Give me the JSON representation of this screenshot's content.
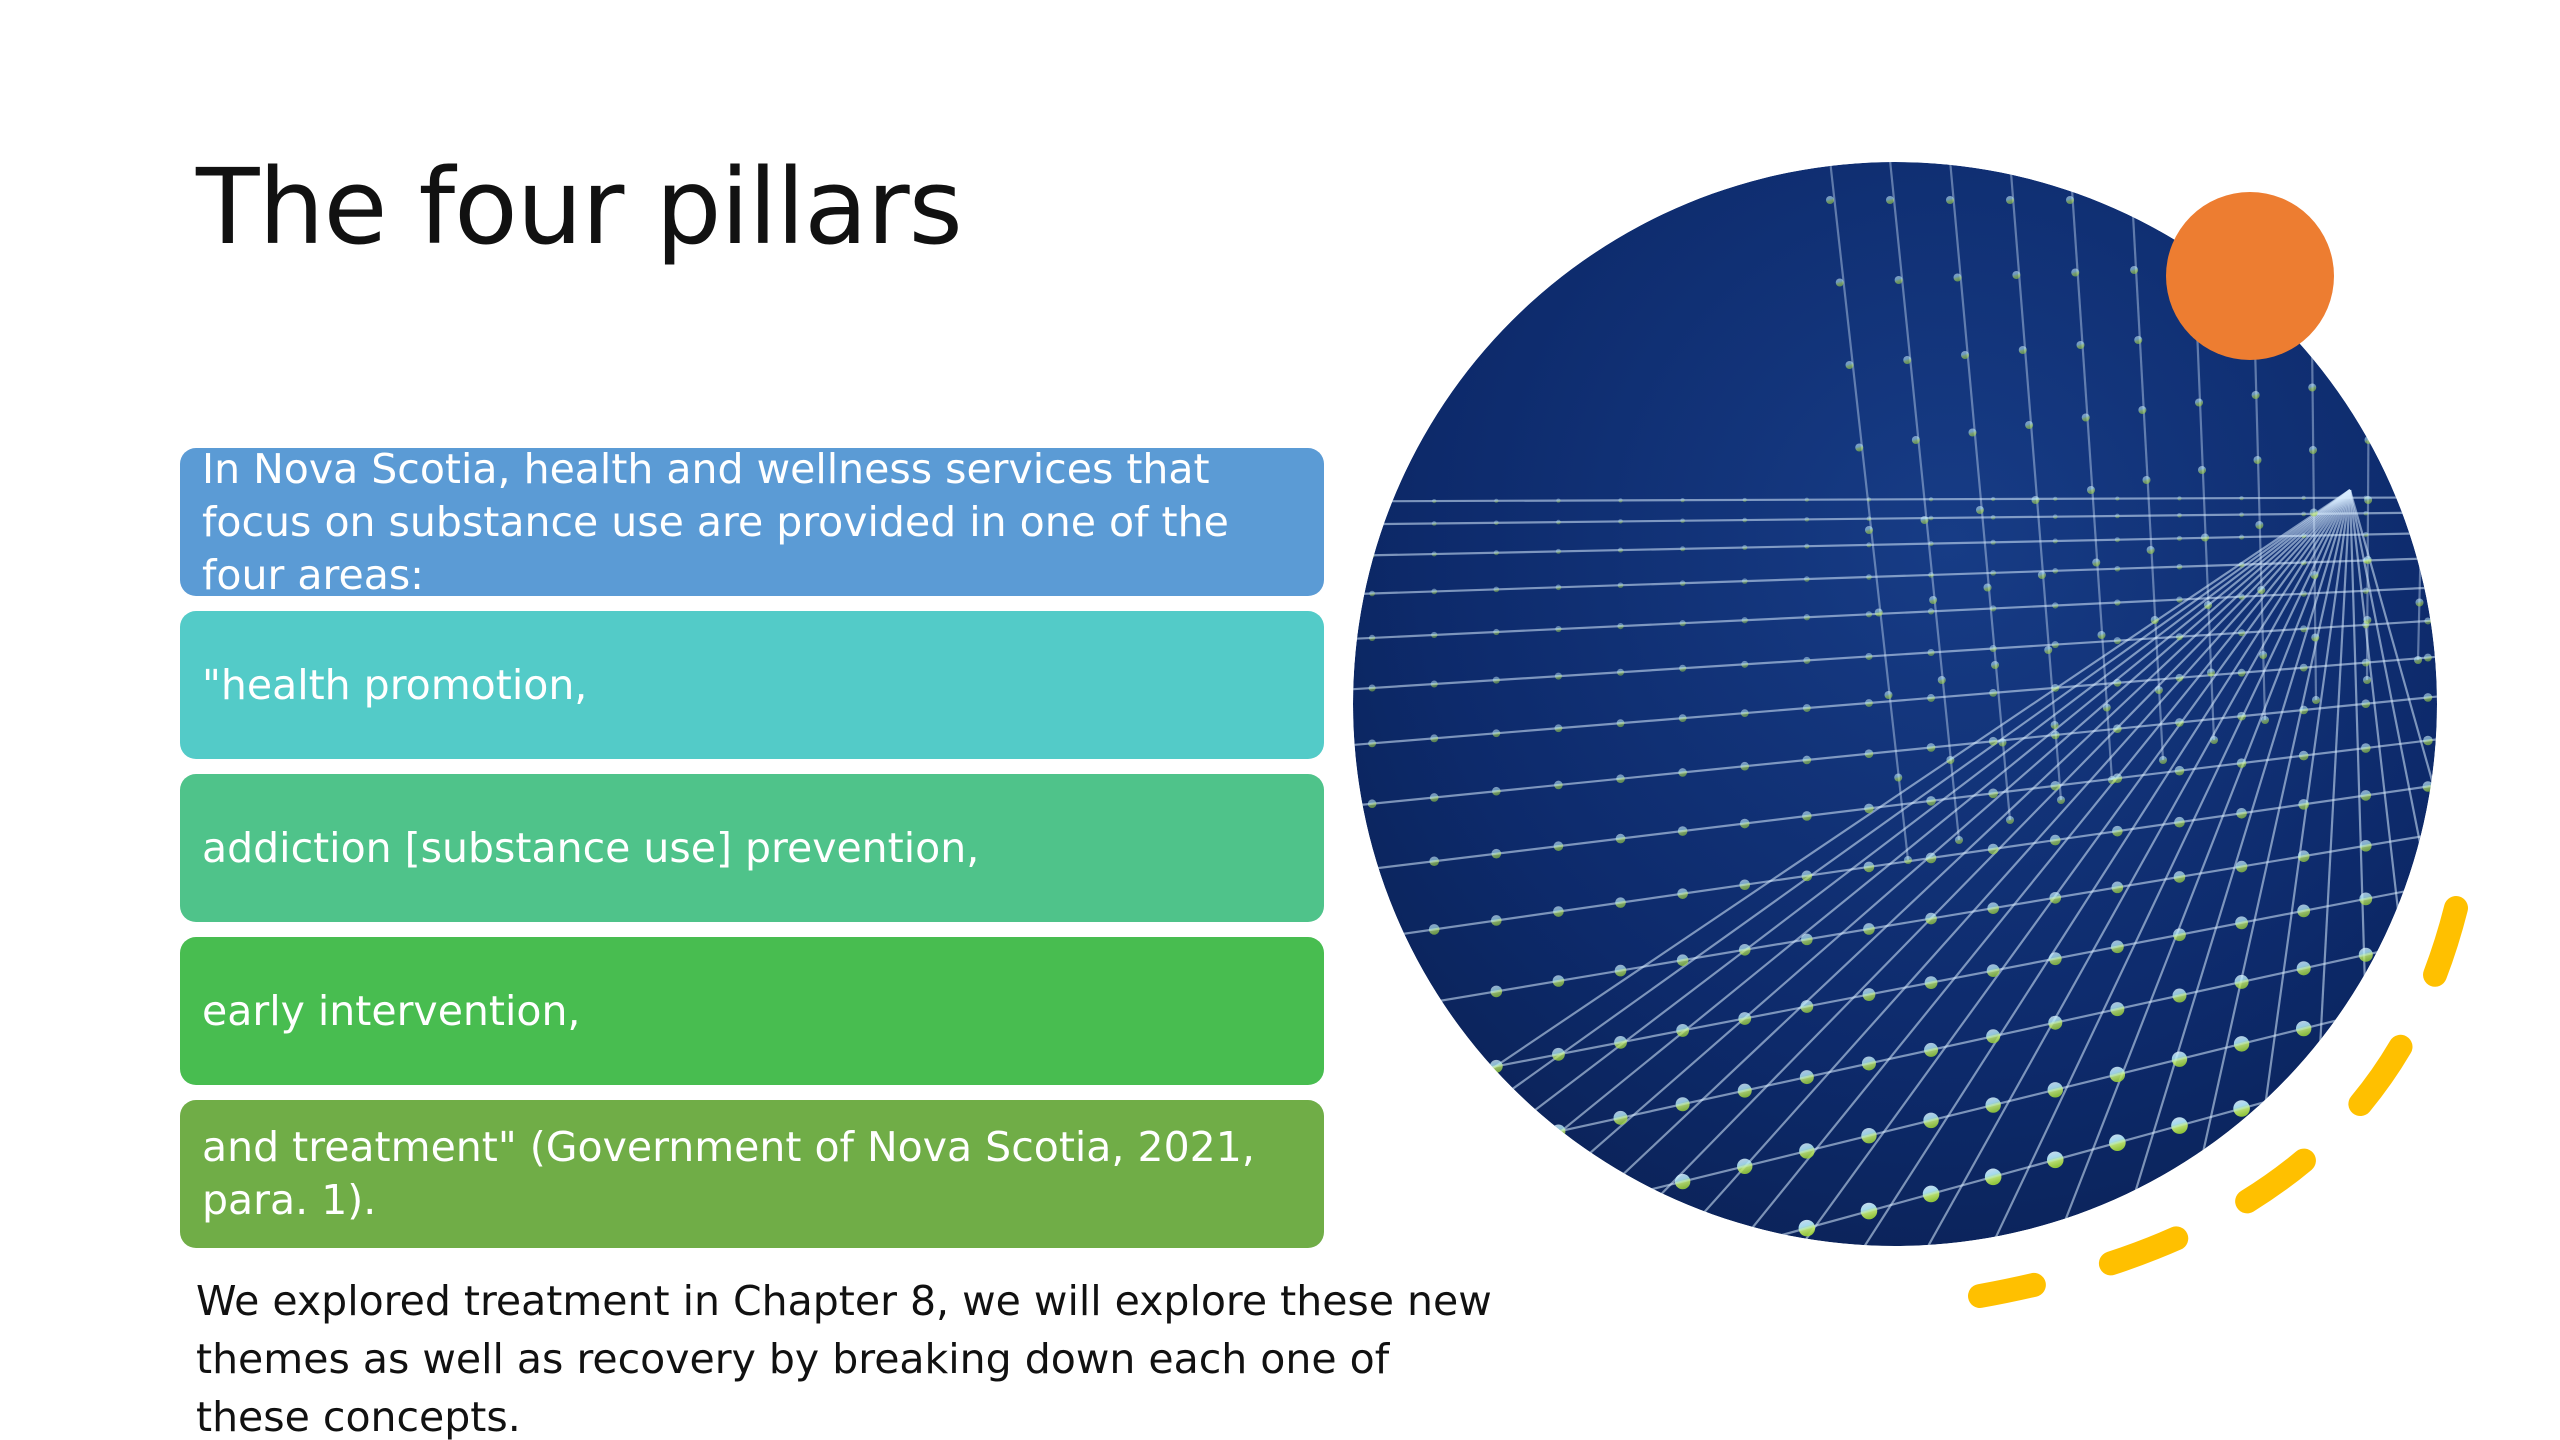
{
  "slide": {
    "title": "The four pillars",
    "boxes": [
      {
        "text": "In Nova Scotia, health and wellness services that focus on substance use are provided in one of the four areas:"
      },
      {
        "text": "\"health promotion,"
      },
      {
        "text": "addiction [substance use] prevention,"
      },
      {
        "text": "early intervention,"
      },
      {
        "text": "and treatment\" (Government of Nova Scotia, 2021, para. 1)."
      }
    ],
    "footnote": "We explored treatment in Chapter 8, we will explore these new themes as well as recovery by breaking down each one of these concepts.",
    "colors": {
      "box_1": "#5b9bd5",
      "box_2": "#53cbc8",
      "box_3": "#4fc38a",
      "box_4": "#48bd50",
      "box_5": "#70ad47",
      "accent_orange": "#ed7d31",
      "accent_yellow": "#ffc000",
      "circle_bg": "#0d2a6b"
    },
    "image": {
      "name": "network-grid-image"
    }
  }
}
